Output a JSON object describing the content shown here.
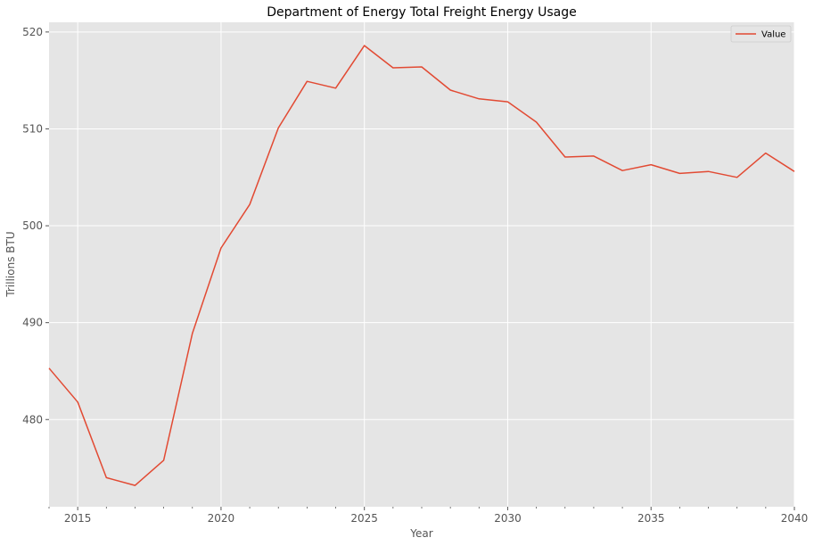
{
  "chart_data": {
    "type": "line",
    "title": "Department of Energy Total Freight Energy Usage",
    "xlabel": "Year",
    "ylabel": "Trillions BTU",
    "xlim": [
      2014,
      2040
    ],
    "ylim": [
      471,
      521
    ],
    "x_ticks": [
      2015,
      2020,
      2025,
      2030,
      2035,
      2040
    ],
    "x_minor_ticks": [
      2014,
      2016,
      2017,
      2018,
      2019,
      2021,
      2022,
      2023,
      2024,
      2026,
      2027,
      2028,
      2029,
      2031,
      2032,
      2033,
      2034,
      2036,
      2037,
      2038,
      2039
    ],
    "y_ticks": [
      480,
      490,
      500,
      510,
      520
    ],
    "grid": true,
    "legend_position": "top-right",
    "series": [
      {
        "name": "Value",
        "color": "#e24a33",
        "x": [
          2014,
          2015,
          2016,
          2017,
          2018,
          2019,
          2020,
          2021,
          2022,
          2023,
          2024,
          2025,
          2026,
          2027,
          2028,
          2029,
          2030,
          2031,
          2032,
          2033,
          2034,
          2035,
          2036,
          2037,
          2038,
          2039,
          2040
        ],
        "values": [
          485.3,
          481.8,
          474.0,
          473.2,
          475.8,
          488.9,
          497.7,
          502.2,
          510.1,
          514.9,
          514.2,
          518.6,
          516.3,
          516.4,
          514.0,
          513.1,
          512.8,
          510.7,
          507.1,
          507.2,
          505.7,
          506.3,
          505.4,
          505.6,
          505.0,
          507.5,
          505.6
        ]
      }
    ]
  }
}
